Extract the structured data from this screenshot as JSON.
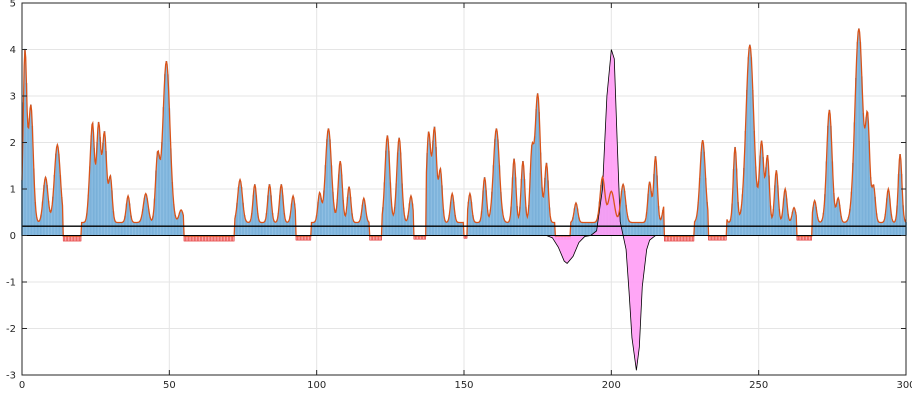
{
  "chart_data": {
    "type": "bar",
    "title": "",
    "xlabel": "",
    "ylabel": "",
    "xlim": [
      0,
      300
    ],
    "ylim": [
      -3,
      5
    ],
    "xticks": [
      0,
      50,
      100,
      150,
      200,
      250,
      300
    ],
    "yticks": [
      -3,
      -2,
      -1,
      0,
      1,
      2,
      3,
      4,
      5
    ],
    "grid": true,
    "legend": "none",
    "threshold": 0.2,
    "peaks": [
      [
        1,
        3.9,
        0.6
      ],
      [
        3,
        2.8,
        0.8
      ],
      [
        8,
        1.25,
        0.8
      ],
      [
        12,
        1.95,
        1.0
      ],
      [
        23,
        1.0,
        0.6
      ],
      [
        24,
        2.2,
        0.6
      ],
      [
        26,
        2.4,
        0.7
      ],
      [
        28,
        2.2,
        0.7
      ],
      [
        30,
        1.25,
        0.6
      ],
      [
        36,
        0.85,
        0.6
      ],
      [
        42,
        0.9,
        0.8
      ],
      [
        46,
        1.65,
        0.7
      ],
      [
        49,
        3.75,
        1.2
      ],
      [
        54,
        0.55,
        0.7
      ],
      [
        74,
        1.2,
        0.8
      ],
      [
        79,
        1.1,
        0.6
      ],
      [
        84,
        1.1,
        0.6
      ],
      [
        88,
        1.1,
        0.6
      ],
      [
        92,
        0.85,
        0.6
      ],
      [
        101,
        0.9,
        0.6
      ],
      [
        104,
        2.3,
        1.0
      ],
      [
        108,
        1.6,
        0.7
      ],
      [
        111,
        1.05,
        0.6
      ],
      [
        116,
        0.8,
        0.6
      ],
      [
        124,
        2.15,
        0.8
      ],
      [
        128,
        2.1,
        0.8
      ],
      [
        132,
        0.85,
        0.6
      ],
      [
        138,
        2.2,
        0.7
      ],
      [
        140,
        2.3,
        0.7
      ],
      [
        142,
        1.4,
        0.6
      ],
      [
        146,
        0.9,
        0.6
      ],
      [
        152,
        0.9,
        0.6
      ],
      [
        157,
        1.25,
        0.6
      ],
      [
        161,
        2.3,
        1.0
      ],
      [
        167,
        1.65,
        0.6
      ],
      [
        170,
        1.6,
        0.6
      ],
      [
        173,
        1.7,
        0.6
      ],
      [
        175,
        3.05,
        0.9
      ],
      [
        178,
        1.55,
        0.6
      ],
      [
        188,
        0.7,
        0.6
      ],
      [
        197,
        1.25,
        0.8
      ],
      [
        200,
        0.95,
        1.0
      ],
      [
        204,
        1.1,
        0.8
      ],
      [
        213,
        1.15,
        0.6
      ],
      [
        215,
        1.7,
        0.6
      ],
      [
        218,
        0.65,
        0.6
      ],
      [
        231,
        2.05,
        0.9
      ],
      [
        238,
        0.85,
        0.6
      ],
      [
        242,
        1.9,
        0.6
      ],
      [
        247,
        4.1,
        1.3
      ],
      [
        251,
        2.0,
        0.7
      ],
      [
        253,
        1.7,
        0.6
      ],
      [
        256,
        1.4,
        0.6
      ],
      [
        259,
        1.0,
        0.6
      ],
      [
        262,
        0.6,
        0.6
      ],
      [
        269,
        0.75,
        0.6
      ],
      [
        274,
        2.7,
        0.9
      ],
      [
        277,
        0.8,
        0.6
      ],
      [
        284,
        4.45,
        1.3
      ],
      [
        287,
        2.35,
        0.7
      ],
      [
        289,
        1.05,
        0.6
      ],
      [
        294,
        1.0,
        0.6
      ],
      [
        298,
        1.75,
        0.6
      ]
    ],
    "bands": [
      [
        14,
        20,
        -0.12
      ],
      [
        55,
        72,
        -0.12
      ],
      [
        93,
        98,
        -0.1
      ],
      [
        118,
        122,
        -0.1
      ],
      [
        133,
        137,
        -0.08
      ],
      [
        150,
        151,
        -0.06
      ],
      [
        181,
        186,
        -0.08
      ],
      [
        218,
        228,
        -0.12
      ],
      [
        233,
        239,
        -0.1
      ],
      [
        263,
        268,
        -0.1
      ]
    ],
    "magenta_curve": [
      [
        178,
        0.0
      ],
      [
        180,
        -0.05
      ],
      [
        182,
        -0.25
      ],
      [
        184,
        -0.55
      ],
      [
        185,
        -0.6
      ],
      [
        187,
        -0.45
      ],
      [
        189,
        -0.15
      ],
      [
        191,
        -0.02
      ],
      [
        193,
        0.0
      ],
      [
        195,
        0.1
      ],
      [
        197,
        1.0
      ],
      [
        198.5,
        3.0
      ],
      [
        200,
        4.0
      ],
      [
        201,
        3.8
      ],
      [
        202,
        2.0
      ],
      [
        203,
        0.3
      ],
      [
        204,
        0.0
      ],
      [
        205,
        -0.3
      ],
      [
        206,
        -1.2
      ],
      [
        207,
        -2.2
      ],
      [
        208.5,
        -2.9
      ],
      [
        209.5,
        -2.4
      ],
      [
        210.5,
        -1.1
      ],
      [
        212,
        -0.3
      ],
      [
        213,
        -0.1
      ],
      [
        214,
        -0.05
      ],
      [
        215,
        0.0
      ]
    ],
    "colors": {
      "bar": "#8fbfe3",
      "bar_edge": "#4f95c9",
      "envelope": "#d95319",
      "band": "#ff7a7a",
      "band_edge": "#e23b3b",
      "magenta": "#ff9cf5",
      "threshold": "#000000",
      "grid": "#e5e5e5",
      "axis": "#262626"
    }
  }
}
